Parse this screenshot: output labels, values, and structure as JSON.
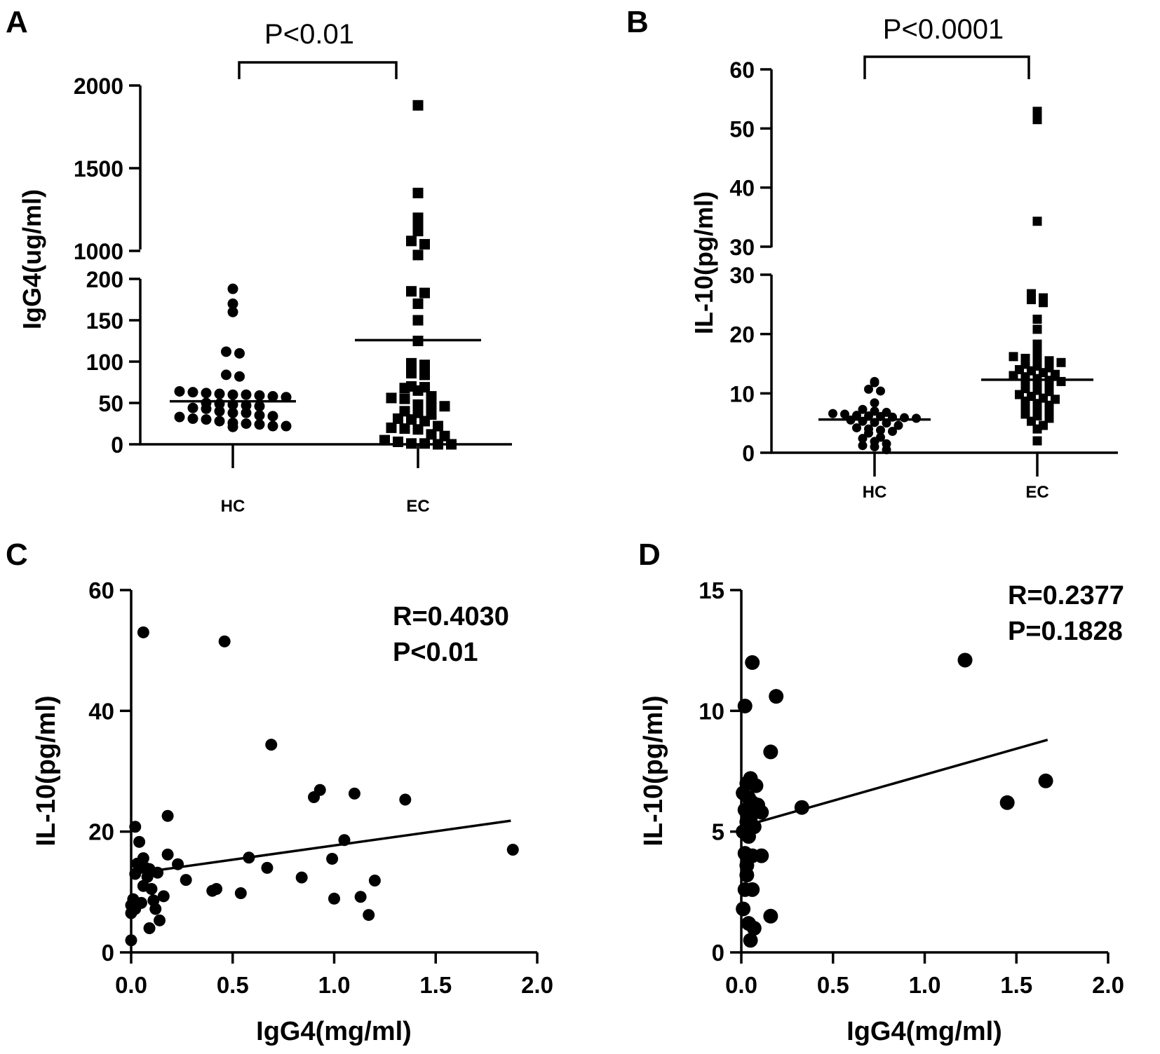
{
  "colors": {
    "ink": "#000000",
    "background": "#ffffff"
  },
  "chart_data": [
    {
      "panel": "A",
      "type": "scatter",
      "title": "",
      "xlabel": "",
      "ylabel": "IgG4(ug/ml)",
      "categories": [
        "HC",
        "EC"
      ],
      "significance": "P<0.01",
      "axis_break": {
        "lower_range": [
          0,
          200
        ],
        "lower_ticks": [
          "0",
          "50",
          "100",
          "150",
          "200"
        ],
        "upper_range": [
          1000,
          2000
        ],
        "upper_ticks": [
          "1000",
          "1500",
          "2000"
        ]
      },
      "series": [
        {
          "name": "HC",
          "marker": "circle",
          "mean": 52,
          "values": [
            188,
            170,
            160,
            112,
            110,
            84,
            82,
            64,
            63,
            62,
            61,
            60,
            60,
            59,
            58,
            57,
            50,
            49,
            48,
            47,
            46,
            44,
            43,
            40,
            38,
            38,
            35,
            34,
            33,
            31,
            30,
            28,
            26,
            25,
            24,
            22,
            22,
            21
          ]
        },
        {
          "name": "EC",
          "marker": "square",
          "mean": 126,
          "values": [
            1880,
            1350,
            1200,
            1180,
            1120,
            1060,
            1040,
            975,
            185,
            183,
            170,
            150,
            125,
            98,
            96,
            86,
            84,
            70,
            69,
            68,
            65,
            58,
            56,
            55,
            48,
            47,
            46,
            40,
            38,
            36,
            31,
            30,
            28,
            22,
            20,
            19,
            18,
            12,
            10,
            5,
            3,
            1,
            1,
            0,
            0
          ]
        }
      ]
    },
    {
      "panel": "B",
      "type": "scatter",
      "title": "",
      "xlabel": "",
      "ylabel": "IL-10(pg/ml)",
      "categories": [
        "HC",
        "EC"
      ],
      "significance": "P<0.0001",
      "axis_break": {
        "lower_range": [
          0,
          30
        ],
        "lower_ticks": [
          "0",
          "10",
          "20",
          "30"
        ],
        "upper_range": [
          30,
          60
        ],
        "upper_ticks": [
          "30",
          "40",
          "50",
          "60"
        ]
      },
      "series": [
        {
          "name": "HC",
          "marker": "circle",
          "mean": 5.6,
          "values": [
            12.0,
            11.8,
            10.7,
            10.4,
            8.4,
            7.3,
            7.0,
            6.8,
            6.6,
            6.5,
            6.3,
            6.2,
            6.1,
            6.0,
            5.9,
            5.8,
            5.5,
            5.3,
            5.1,
            5.0,
            4.6,
            4.2,
            4.0,
            3.8,
            3.6,
            3.3,
            2.6,
            2.4,
            1.9,
            1.5,
            1.2,
            1.0,
            0.5
          ]
        },
        {
          "name": "EC",
          "marker": "square",
          "mean": 12.3,
          "values": [
            52.9,
            51.5,
            34.3,
            26.8,
            26.1,
            25.8,
            25.3,
            22.5,
            20.8,
            18.3,
            17.0,
            16.2,
            15.9,
            15.7,
            15.5,
            15.2,
            14.9,
            14.6,
            14.3,
            14.0,
            13.8,
            13.5,
            13.2,
            13.0,
            12.8,
            12.5,
            12.2,
            12.0,
            11.8,
            11.5,
            11.0,
            10.8,
            10.5,
            10.3,
            9.8,
            9.5,
            9.2,
            9.0,
            8.7,
            8.3,
            8.0,
            7.7,
            7.3,
            7.0,
            6.5,
            6.2,
            5.8,
            5.3,
            4.6,
            4.0,
            2.0
          ]
        }
      ]
    },
    {
      "panel": "C",
      "type": "scatter",
      "title": "",
      "xlabel": "IgG4(mg/ml)",
      "ylabel": "IL-10(pg/ml)",
      "xlim": [
        0,
        2.0
      ],
      "ylim": [
        0,
        60
      ],
      "xticks": [
        "0.0",
        "0.5",
        "1.0",
        "1.5",
        "2.0"
      ],
      "yticks": [
        "0",
        "20",
        "40",
        "60"
      ],
      "annotations": [
        "R=0.4030",
        "P<0.01"
      ],
      "fit_line": {
        "x": [
          0.0,
          1.87
        ],
        "y": [
          13.0,
          21.8
        ]
      },
      "points": [
        [
          0.06,
          53.0
        ],
        [
          0.46,
          51.5
        ],
        [
          0.69,
          34.4
        ],
        [
          0.93,
          26.9
        ],
        [
          0.9,
          25.7
        ],
        [
          1.1,
          26.3
        ],
        [
          1.35,
          25.3
        ],
        [
          0.02,
          20.8
        ],
        [
          0.18,
          22.6
        ],
        [
          0.04,
          18.3
        ],
        [
          1.88,
          17.0
        ],
        [
          1.05,
          18.6
        ],
        [
          0.18,
          16.2
        ],
        [
          0.58,
          15.7
        ],
        [
          0.99,
          15.5
        ],
        [
          0.06,
          15.6
        ],
        [
          0.03,
          14.7
        ],
        [
          0.05,
          14.3
        ],
        [
          0.07,
          14.0
        ],
        [
          0.09,
          13.8
        ],
        [
          0.13,
          13.2
        ],
        [
          0.23,
          14.6
        ],
        [
          0.67,
          14.0
        ],
        [
          0.02,
          13.0
        ],
        [
          0.08,
          12.5
        ],
        [
          0.27,
          12.0
        ],
        [
          0.84,
          12.4
        ],
        [
          1.2,
          11.9
        ],
        [
          0.06,
          11.0
        ],
        [
          0.1,
          10.5
        ],
        [
          0.42,
          10.5
        ],
        [
          0.4,
          10.2
        ],
        [
          0.54,
          9.8
        ],
        [
          0.16,
          9.3
        ],
        [
          1.13,
          9.2
        ],
        [
          0.01,
          8.8
        ],
        [
          0.05,
          8.2
        ],
        [
          0.11,
          8.6
        ],
        [
          1.0,
          8.9
        ],
        [
          0.0,
          7.8
        ],
        [
          0.02,
          7.2
        ],
        [
          0.12,
          7.2
        ],
        [
          0.0,
          6.5
        ],
        [
          0.14,
          5.3
        ],
        [
          1.17,
          6.2
        ],
        [
          0.09,
          4.0
        ],
        [
          0.0,
          2.0
        ]
      ]
    },
    {
      "panel": "D",
      "type": "scatter",
      "title": "",
      "xlabel": "IgG4(mg/ml)",
      "ylabel": "IL-10(pg/ml)",
      "xlim": [
        0,
        2.0
      ],
      "ylim": [
        0,
        15
      ],
      "xticks": [
        "0.0",
        "0.5",
        "1.0",
        "1.5",
        "2.0"
      ],
      "yticks": [
        "0",
        "5",
        "10",
        "15"
      ],
      "annotations": [
        "R=0.2377",
        "P=0.1828"
      ],
      "fit_line": {
        "x": [
          0.0,
          1.67
        ],
        "y": [
          5.2,
          8.8
        ]
      },
      "points": [
        [
          0.06,
          12.0
        ],
        [
          1.22,
          12.1
        ],
        [
          0.19,
          10.6
        ],
        [
          0.02,
          10.2
        ],
        [
          0.16,
          8.3
        ],
        [
          1.66,
          7.1
        ],
        [
          1.45,
          6.2
        ],
        [
          0.33,
          6.0
        ],
        [
          0.03,
          7.0
        ],
        [
          0.05,
          7.2
        ],
        [
          0.08,
          6.9
        ],
        [
          0.01,
          6.6
        ],
        [
          0.04,
          6.4
        ],
        [
          0.06,
          6.2
        ],
        [
          0.09,
          6.1
        ],
        [
          0.02,
          5.9
        ],
        [
          0.11,
          5.8
        ],
        [
          0.05,
          5.6
        ],
        [
          0.03,
          5.4
        ],
        [
          0.07,
          5.2
        ],
        [
          0.01,
          5.0
        ],
        [
          0.04,
          4.8
        ],
        [
          0.02,
          4.1
        ],
        [
          0.06,
          4.0
        ],
        [
          0.11,
          4.0
        ],
        [
          0.03,
          3.6
        ],
        [
          0.03,
          3.2
        ],
        [
          0.02,
          2.6
        ],
        [
          0.06,
          2.6
        ],
        [
          0.01,
          1.8
        ],
        [
          0.16,
          1.5
        ],
        [
          0.04,
          1.2
        ],
        [
          0.07,
          1.0
        ],
        [
          0.05,
          0.5
        ]
      ]
    }
  ]
}
